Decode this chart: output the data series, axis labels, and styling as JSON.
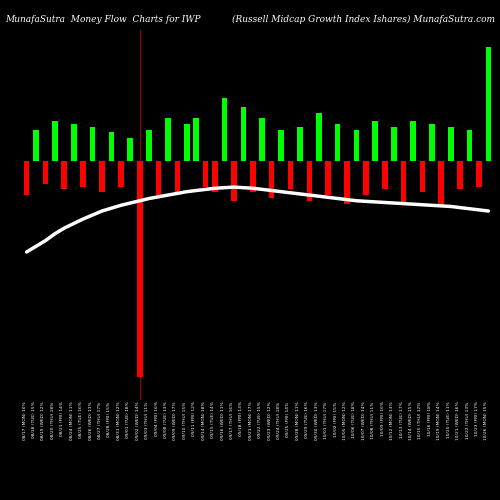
{
  "title_left": "MunafaSutra  Money Flow  Charts for IWP",
  "title_right": "(Russell Midcap Growth Index Ishares) MunafaSutra.com",
  "background_color": "#000000",
  "line_color": "#ffffff",
  "line_width": 2.5,
  "n_bars": 50,
  "bar_heights": [
    -60,
    55,
    -40,
    70,
    -50,
    65,
    -45,
    60,
    -55,
    50,
    -45,
    40,
    -380,
    55,
    -60,
    75,
    -55,
    65,
    75,
    -45,
    -55,
    110,
    -70,
    95,
    -55,
    75,
    -65,
    55,
    -50,
    60,
    -70,
    85,
    -60,
    65,
    -75,
    55,
    -60,
    70,
    -50,
    60,
    -75,
    70,
    -55,
    65,
    -80,
    60,
    -50,
    55,
    -45,
    200
  ],
  "bar_colors": [
    "red",
    "lime",
    "red",
    "lime",
    "red",
    "lime",
    "red",
    "lime",
    "red",
    "lime",
    "red",
    "lime",
    "red",
    "lime",
    "red",
    "lime",
    "red",
    "lime",
    "lime",
    "red",
    "red",
    "lime",
    "red",
    "lime",
    "red",
    "lime",
    "red",
    "lime",
    "red",
    "lime",
    "red",
    "lime",
    "red",
    "lime",
    "red",
    "lime",
    "red",
    "lime",
    "red",
    "lime",
    "red",
    "lime",
    "red",
    "lime",
    "red",
    "lime",
    "red",
    "lime",
    "red",
    "lime"
  ],
  "x_labels": [
    "08/17 (MON) 10%",
    "08/18 (TUE) 15%",
    "08/19 (WED) 12%",
    "08/20 (THU) 18%",
    "08/21 (FRI) 14%",
    "08/24 (MON) 11%",
    "08/25 (TUE) 16%",
    "08/26 (WED) 13%",
    "08/27 (THU) 17%",
    "08/28 (FRI) 15%",
    "08/31 (MON) 12%",
    "09/01 (TUE) 18%",
    "09/02 (WED) 14%",
    "09/03 (THU) 11%",
    "09/04 (FRI) 16%",
    "09/08 (TUE) 13%",
    "09/09 (WED) 17%",
    "09/10 (THU) 15%",
    "09/11 (FRI) 12%",
    "09/14 (MON) 18%",
    "09/15 (TUE) 14%",
    "09/16 (WED) 11%",
    "09/17 (THU) 16%",
    "09/18 (FRI) 13%",
    "09/21 (MON) 17%",
    "09/22 (TUE) 15%",
    "09/23 (WED) 12%",
    "09/24 (THU) 18%",
    "09/25 (FRI) 14%",
    "09/28 (MON) 11%",
    "09/29 (TUE) 16%",
    "09/30 (WED) 13%",
    "10/01 (THU) 17%",
    "10/02 (FRI) 15%",
    "10/05 (MON) 12%",
    "10/06 (TUE) 18%",
    "10/07 (WED) 14%",
    "10/08 (THU) 11%",
    "10/09 (FRI) 16%",
    "10/12 (MON) 13%",
    "10/13 (TUE) 17%",
    "10/14 (WED) 15%",
    "10/15 (THU) 12%",
    "10/16 (FRI) 18%",
    "10/19 (MON) 14%",
    "10/20 (TUE) 11%",
    "10/21 (WED) 16%",
    "10/22 (THU) 13%",
    "10/23 (FRI) 17%",
    "10/26 (MON) 15%"
  ],
  "line_y_values": [
    -160,
    -150,
    -140,
    -128,
    -118,
    -110,
    -102,
    -95,
    -88,
    -83,
    -78,
    -74,
    -70,
    -66,
    -63,
    -60,
    -57,
    -54,
    -52,
    -50,
    -48,
    -47,
    -46,
    -47,
    -48,
    -50,
    -52,
    -54,
    -56,
    -58,
    -60,
    -62,
    -64,
    -66,
    -68,
    -70,
    -71,
    -72,
    -73,
    -74,
    -75,
    -76,
    -77,
    -78,
    -79,
    -80,
    -82,
    -84,
    -86,
    -88
  ],
  "ylim": [
    -420,
    230
  ],
  "bar_width": 0.6
}
